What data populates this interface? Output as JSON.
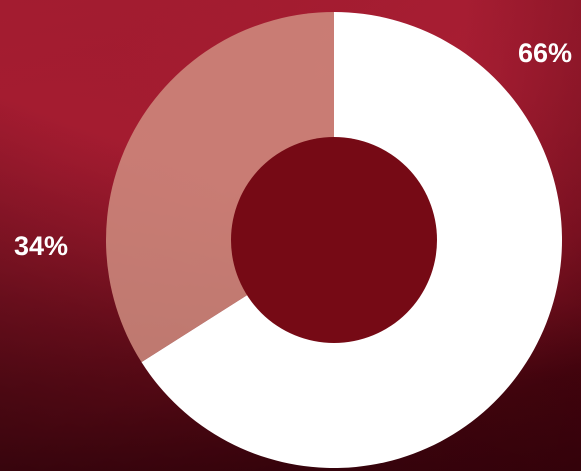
{
  "chart_data": {
    "type": "pie",
    "donut": true,
    "slices": [
      {
        "value": 66,
        "label": "66%",
        "color": "#ffffff"
      },
      {
        "value": 34,
        "label": "34%",
        "color": "#d08d80"
      }
    ],
    "hole_color": "#760a15"
  }
}
